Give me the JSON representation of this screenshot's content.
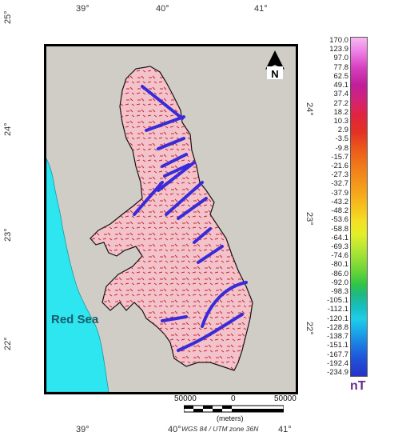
{
  "graticule": {
    "top_lon": [
      "39°",
      "40°",
      "41°"
    ],
    "bottom_lon": [
      "39°",
      "40°",
      "41°"
    ],
    "left_lat": [
      "25°",
      "24°",
      "23°",
      "22°"
    ],
    "right_lat": [
      "24°",
      "23°",
      "22°"
    ]
  },
  "map": {
    "sea_label": "Red Sea",
    "north_label": "N",
    "lineament_color": "#3a2bd8",
    "sea_color": "#2ee6f0",
    "land_color": "#cfcdc6",
    "anomaly_color": "#f3c3cc"
  },
  "legend": {
    "unit": "nT",
    "ticks": [
      "170.0",
      "123.9",
      "97.0",
      "77.8",
      "62.5",
      "49.1",
      "37.4",
      "27.2",
      "18.2",
      "10.3",
      "2.9",
      "-3.5",
      "-9.8",
      "-15.7",
      "-21.6",
      "-27.3",
      "-32.7",
      "-37.9",
      "-43.2",
      "-48.2",
      "-53.6",
      "-58.8",
      "-64.1",
      "-69.3",
      "-74.6",
      "-80.1",
      "-86.0",
      "-92.0",
      "-98.3",
      "-105.1",
      "-112.1",
      "-120.1",
      "-128.8",
      "-138.7",
      "-151.1",
      "-167.7",
      "-192.4",
      "-234.9"
    ]
  },
  "scale": {
    "left": "50000",
    "center": "0",
    "right": "50000",
    "units": "(meters)"
  },
  "projection": "WGS 84 / UTM zone 36N"
}
